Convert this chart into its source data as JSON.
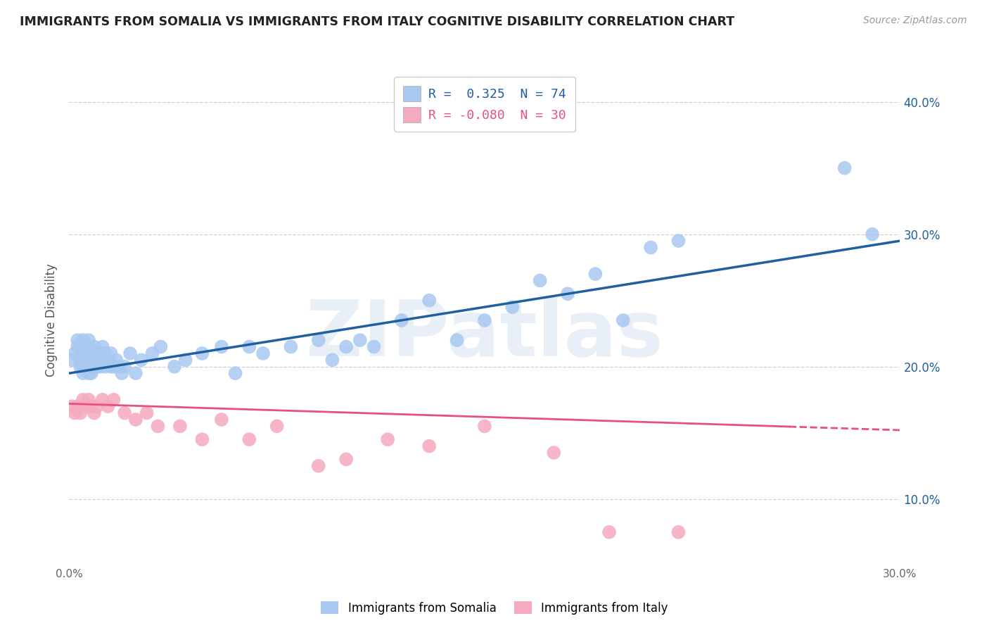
{
  "title": "IMMIGRANTS FROM SOMALIA VS IMMIGRANTS FROM ITALY COGNITIVE DISABILITY CORRELATION CHART",
  "source": "Source: ZipAtlas.com",
  "ylabel": "Cognitive Disability",
  "xlim": [
    0.0,
    0.3
  ],
  "ylim": [
    0.05,
    0.42
  ],
  "yticks": [
    0.1,
    0.2,
    0.3,
    0.4
  ],
  "ytick_labels": [
    "10.0%",
    "20.0%",
    "30.0%",
    "40.0%"
  ],
  "xticks": [
    0.0,
    0.05,
    0.1,
    0.15,
    0.2,
    0.25,
    0.3
  ],
  "xtick_labels": [
    "0.0%",
    "",
    "",
    "",
    "",
    "",
    "30.0%"
  ],
  "somalia_R_label": "R =  0.325  N = 74",
  "italy_R_label": "R = -0.080  N = 30",
  "somalia_color": "#A8C8F0",
  "italy_color": "#F5AABF",
  "somalia_line_color": "#2060A0",
  "italy_line_color": "#E85080",
  "background_color": "#ffffff",
  "grid_color": "#cccccc",
  "title_color": "#222222",
  "watermark": "ZIPatlas",
  "watermark_color": "#C8D8EC",
  "somalia_x": [
    0.001,
    0.002,
    0.003,
    0.003,
    0.004,
    0.004,
    0.004,
    0.005,
    0.005,
    0.005,
    0.005,
    0.006,
    0.006,
    0.006,
    0.007,
    0.007,
    0.007,
    0.007,
    0.007,
    0.008,
    0.008,
    0.008,
    0.008,
    0.009,
    0.009,
    0.009,
    0.01,
    0.01,
    0.01,
    0.011,
    0.011,
    0.012,
    0.012,
    0.013,
    0.013,
    0.014,
    0.015,
    0.015,
    0.016,
    0.017,
    0.018,
    0.019,
    0.02,
    0.022,
    0.024,
    0.026,
    0.03,
    0.033,
    0.038,
    0.042,
    0.048,
    0.055,
    0.06,
    0.065,
    0.07,
    0.08,
    0.09,
    0.095,
    0.1,
    0.105,
    0.11,
    0.12,
    0.13,
    0.14,
    0.15,
    0.16,
    0.17,
    0.18,
    0.19,
    0.2,
    0.21,
    0.22,
    0.28,
    0.29
  ],
  "somalia_y": [
    0.205,
    0.21,
    0.215,
    0.22,
    0.2,
    0.205,
    0.215,
    0.195,
    0.2,
    0.21,
    0.22,
    0.2,
    0.205,
    0.215,
    0.195,
    0.2,
    0.205,
    0.215,
    0.22,
    0.195,
    0.2,
    0.205,
    0.21,
    0.2,
    0.205,
    0.215,
    0.2,
    0.205,
    0.21,
    0.2,
    0.21,
    0.205,
    0.215,
    0.2,
    0.21,
    0.205,
    0.2,
    0.21,
    0.2,
    0.205,
    0.2,
    0.195,
    0.2,
    0.21,
    0.195,
    0.205,
    0.21,
    0.215,
    0.2,
    0.205,
    0.21,
    0.215,
    0.195,
    0.215,
    0.21,
    0.215,
    0.22,
    0.205,
    0.215,
    0.22,
    0.215,
    0.235,
    0.25,
    0.22,
    0.235,
    0.245,
    0.265,
    0.255,
    0.27,
    0.235,
    0.29,
    0.295,
    0.35,
    0.3
  ],
  "italy_x": [
    0.001,
    0.002,
    0.003,
    0.004,
    0.005,
    0.006,
    0.007,
    0.008,
    0.009,
    0.01,
    0.012,
    0.014,
    0.016,
    0.02,
    0.024,
    0.028,
    0.032,
    0.04,
    0.048,
    0.055,
    0.065,
    0.075,
    0.09,
    0.1,
    0.115,
    0.13,
    0.15,
    0.175,
    0.195,
    0.22
  ],
  "italy_y": [
    0.17,
    0.165,
    0.17,
    0.165,
    0.175,
    0.17,
    0.175,
    0.17,
    0.165,
    0.17,
    0.175,
    0.17,
    0.175,
    0.165,
    0.16,
    0.165,
    0.155,
    0.155,
    0.145,
    0.16,
    0.145,
    0.155,
    0.125,
    0.13,
    0.145,
    0.14,
    0.155,
    0.135,
    0.075,
    0.075
  ],
  "somalia_line_x0": 0.0,
  "somalia_line_y0": 0.195,
  "somalia_line_x1": 0.3,
  "somalia_line_y1": 0.295,
  "italy_line_x0": 0.0,
  "italy_line_y0": 0.172,
  "italy_line_x1": 0.3,
  "italy_line_y1": 0.152
}
